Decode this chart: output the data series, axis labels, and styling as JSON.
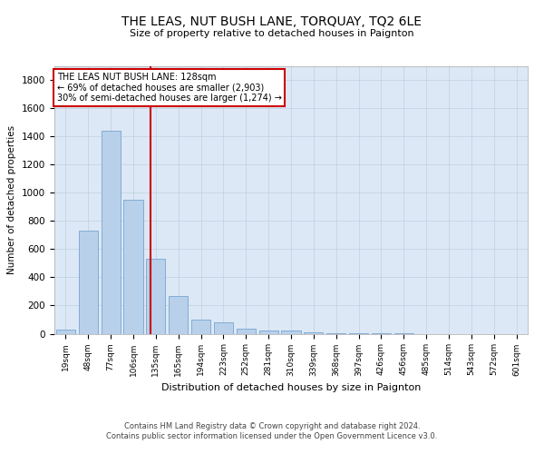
{
  "title": "THE LEAS, NUT BUSH LANE, TORQUAY, TQ2 6LE",
  "subtitle": "Size of property relative to detached houses in Paignton",
  "xlabel": "Distribution of detached houses by size in Paignton",
  "ylabel": "Number of detached properties",
  "footer1": "Contains HM Land Registry data © Crown copyright and database right 2024.",
  "footer2": "Contains public sector information licensed under the Open Government Licence v3.0.",
  "categories": [
    "19sqm",
    "48sqm",
    "77sqm",
    "106sqm",
    "135sqm",
    "165sqm",
    "194sqm",
    "223sqm",
    "252sqm",
    "281sqm",
    "310sqm",
    "339sqm",
    "368sqm",
    "397sqm",
    "426sqm",
    "456sqm",
    "485sqm",
    "514sqm",
    "543sqm",
    "572sqm",
    "601sqm"
  ],
  "values": [
    30,
    730,
    1440,
    950,
    530,
    265,
    100,
    80,
    35,
    25,
    20,
    10,
    5,
    3,
    2,
    1,
    0,
    0,
    0,
    0,
    0
  ],
  "bar_color": "#b8d0ea",
  "bar_edge_color": "#6699cc",
  "property_label": "THE LEAS NUT BUSH LANE: 128sqm",
  "annotation_line1": "← 69% of detached houses are smaller (2,903)",
  "annotation_line2": "30% of semi-detached houses are larger (1,274) →",
  "vline_color": "#cc0000",
  "annotation_box_color": "#cc0000",
  "ylim": [
    0,
    1900
  ],
  "yticks": [
    0,
    200,
    400,
    600,
    800,
    1000,
    1200,
    1400,
    1600,
    1800
  ],
  "background_color": "#ffffff",
  "plot_bg_color": "#dce8f5",
  "grid_color": "#c0cfe0"
}
